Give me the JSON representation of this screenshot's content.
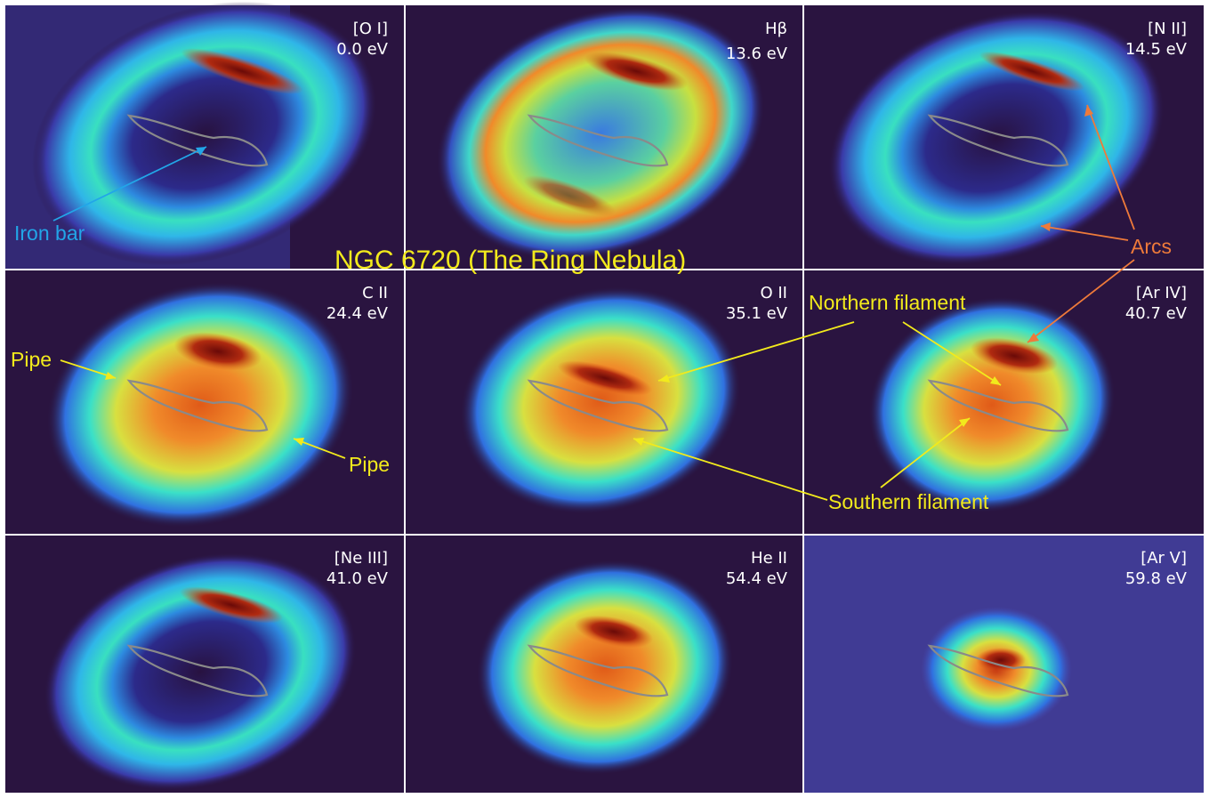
{
  "title": "NGC 6720  (The Ring Nebula)",
  "panels": [
    {
      "line": "[O I]",
      "energy": "0.0 eV"
    },
    {
      "line": "Hβ",
      "energy": "13.6 eV"
    },
    {
      "line": "[N II]",
      "energy": "14.5 eV"
    },
    {
      "line": "C II",
      "energy": "24.4 eV"
    },
    {
      "line": "O II",
      "energy": "35.1 eV"
    },
    {
      "line": "[Ar IV]",
      "energy": "40.7 eV"
    },
    {
      "line": "[Ne III]",
      "energy": "41.0 eV"
    },
    {
      "line": "He II",
      "energy": "54.4 eV"
    },
    {
      "line": "[Ar V]",
      "energy": "59.8 eV"
    }
  ],
  "annotations": {
    "iron_bar": "Iron bar",
    "arcs": "Arcs",
    "pipe_left": "Pipe",
    "pipe_right": "Pipe",
    "northern_filament": "Northern filament",
    "southern_filament": "Southern filament"
  },
  "colors": {
    "background": "#2a1440",
    "yellow_annotation": "#f2ea1c",
    "orange_annotation": "#ee7a3a",
    "blue_annotation": "#22a6e8"
  }
}
